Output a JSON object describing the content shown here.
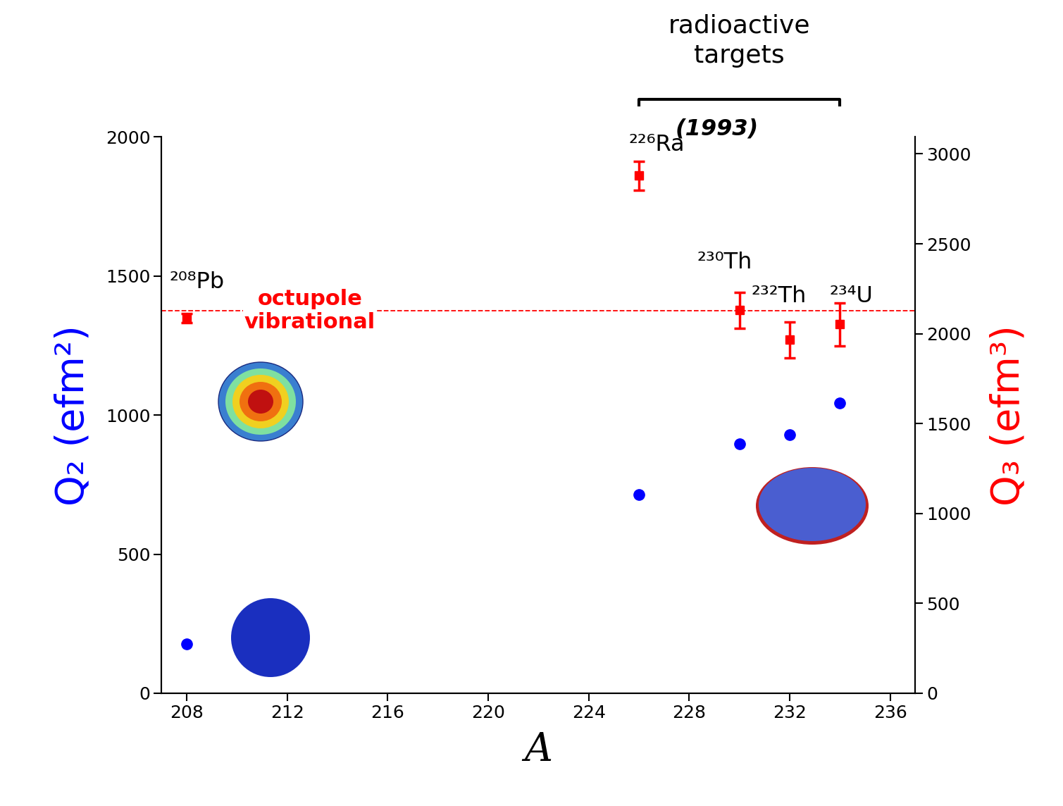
{
  "chart_data": {
    "type": "scatter",
    "x_label": "A",
    "y_label": "Q₂ (efm²)",
    "y2_label": "Q₃ (efm³)",
    "xlim": [
      207,
      237
    ],
    "xticks": [
      208,
      212,
      216,
      220,
      224,
      228,
      232,
      236
    ],
    "ylim": [
      0,
      2000
    ],
    "yticks": [
      0,
      500,
      1000,
      1500,
      2000
    ],
    "y2lim": [
      0,
      3094
    ],
    "y2ticks": [
      0,
      500,
      1000,
      1500,
      2000,
      2500,
      3000
    ],
    "series": [
      {
        "color": "#0000ff",
        "marker": "o",
        "x": [
          208,
          226,
          230,
          232,
          234
        ],
        "values": [
          177,
          714,
          896,
          929,
          1043
        ]
      },
      {
        "color": "#ff0000",
        "marker": "s",
        "axis": "y2",
        "x": [
          208,
          226,
          230,
          232,
          234
        ],
        "values": [
          2088,
          2879,
          2131,
          1966,
          2052
        ],
        "errors": [
          25,
          80,
          100,
          100,
          120
        ],
        "point_labels": [
          "²⁰⁸Pb",
          "²²⁶Ra",
          "²³⁰Th",
          "²³²Th",
          "²³⁴U"
        ]
      }
    ],
    "reference_line": {
      "value": 2127,
      "axis": "y2",
      "color": "#ff0000",
      "line_style": "dashed",
      "label": "octupole\nvibrational"
    },
    "bracket": {
      "label": "radioactive\ntargets",
      "from": 226,
      "to": 234
    },
    "note": "(1993)"
  }
}
